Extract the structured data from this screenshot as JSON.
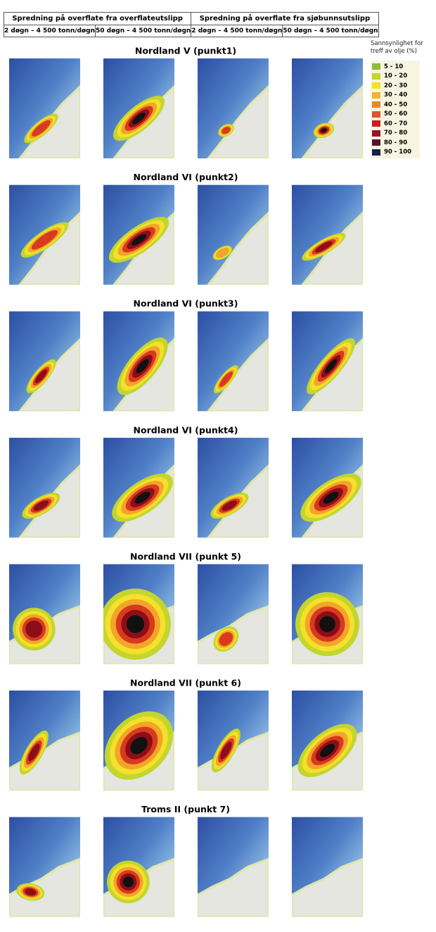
{
  "header": {
    "groups": [
      "Spredning på overflate fra overflateutslipp",
      "Spredning på overflate fra sjøbunnsutslipp"
    ],
    "columns": [
      "2 døgn – 4 500 tonn/døgn",
      "50 døgn – 4 500 tonn/døgn",
      "2 døgn – 4 500 tonn/døgn",
      "50 døgn – 4 500 tonn/døgn"
    ]
  },
  "legend": {
    "title": "Sannsynlighet for treff av olje (%)",
    "items": [
      {
        "label": "5 - 10",
        "color": "#8dbb3c"
      },
      {
        "label": "10 - 20",
        "color": "#c3d52e"
      },
      {
        "label": "20 - 30",
        "color": "#f3e12a"
      },
      {
        "label": "30 - 40",
        "color": "#f2b52c"
      },
      {
        "label": "40 - 50",
        "color": "#e38a2b"
      },
      {
        "label": "50 - 60",
        "color": "#dc5628"
      },
      {
        "label": "60 - 70",
        "color": "#c81e1e"
      },
      {
        "label": "70 - 80",
        "color": "#9c1525"
      },
      {
        "label": "80 - 90",
        "color": "#5a0f2a"
      },
      {
        "label": "90 - 100",
        "color": "#1a2145"
      }
    ]
  },
  "sections": [
    {
      "title": "Nordland V (punkt1)"
    },
    {
      "title": "Nordland VI (punkt2)"
    },
    {
      "title": "Nordland VI (punkt3)"
    },
    {
      "title": "Nordland VI (punkt4)"
    },
    {
      "title": "Nordland VII (punkt 5)"
    },
    {
      "title": "Nordland VII (punkt 6)"
    },
    {
      "title": "Troms II (punkt 7)"
    }
  ]
}
